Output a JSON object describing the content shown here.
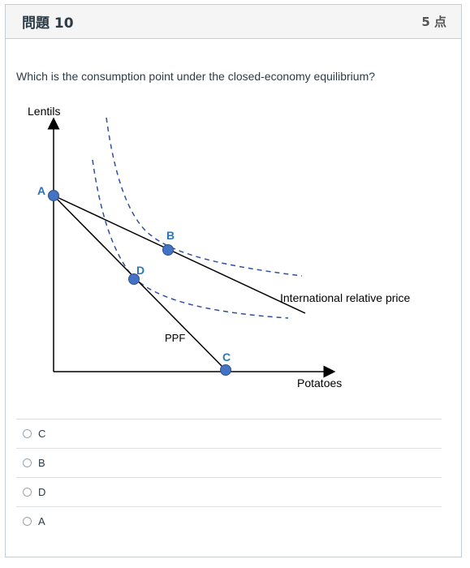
{
  "question": {
    "title": "問題 10",
    "points": "5 点",
    "text": "Which is the consumption point under the closed-economy equilibrium?"
  },
  "figure": {
    "y_axis_label": "Lentils",
    "x_axis_label": "Potatoes",
    "ppf_label": "PPF",
    "price_line_label": "International relative price",
    "points": [
      {
        "name": "A",
        "color": "#4472c4"
      },
      {
        "name": "B",
        "color": "#4472c4"
      },
      {
        "name": "C",
        "color": "#4472c4"
      },
      {
        "name": "D",
        "color": "#4472c4"
      }
    ],
    "point_label_color": "#2e75b6",
    "indifference_curve_color": "#2f4fa0"
  },
  "answers": [
    {
      "label": "C"
    },
    {
      "label": "B"
    },
    {
      "label": "D"
    },
    {
      "label": "A"
    }
  ]
}
